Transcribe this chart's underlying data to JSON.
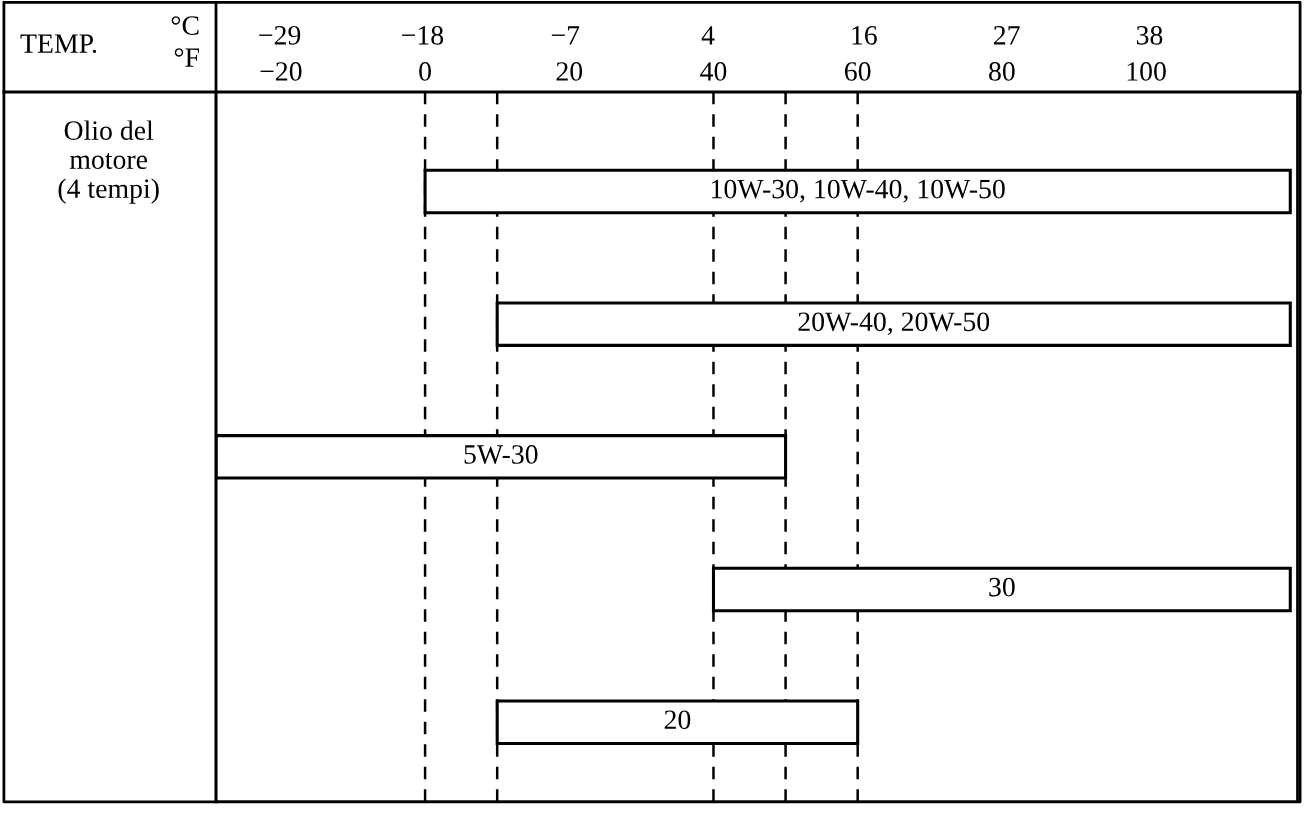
{
  "chart_data": {
    "type": "bar",
    "orientation": "horizontal",
    "title": "TEMP.",
    "xlabel": "°F",
    "x2label": "°C",
    "ylabel": "Olio del\nmotore\n(4 tempi)",
    "categories": [
      "10W-30, 10W-40, 10W-50",
      "20W-40, 20W-50",
      "5W-30",
      "30",
      "20"
    ],
    "series": [
      {
        "color": "#000000",
        "base": [
          0,
          10,
          -29,
          40,
          10
        ],
        "values": [
          120,
          110,
          79,
          80,
          50
        ]
      }
    ],
    "xlim": [
      -29,
      121
    ],
    "xticks": [
      {
        "value": -20,
        "label": "−20"
      },
      0,
      20,
      40,
      60,
      80,
      100
    ],
    "x2lim": [
      -33.9,
      49.4
    ],
    "x2ticks": [
      {
        "value": -29,
        "label": "−29"
      },
      {
        "value": -18,
        "label": "−18"
      },
      {
        "value": -7,
        "label": "−7"
      },
      4,
      16,
      27,
      38
    ],
    "ref_lines": [
      {
        "axis": "x",
        "value": 0,
        "line_style": "dashed"
      },
      {
        "axis": "x",
        "value": 10,
        "line_style": "dashed"
      },
      {
        "axis": "x",
        "value": 40,
        "line_style": "dashed"
      },
      {
        "axis": "x",
        "value": 50,
        "line_style": "dashed"
      },
      {
        "axis": "x",
        "value": 60,
        "line_style": "dashed"
      }
    ],
    "grid": false,
    "legend": false
  }
}
